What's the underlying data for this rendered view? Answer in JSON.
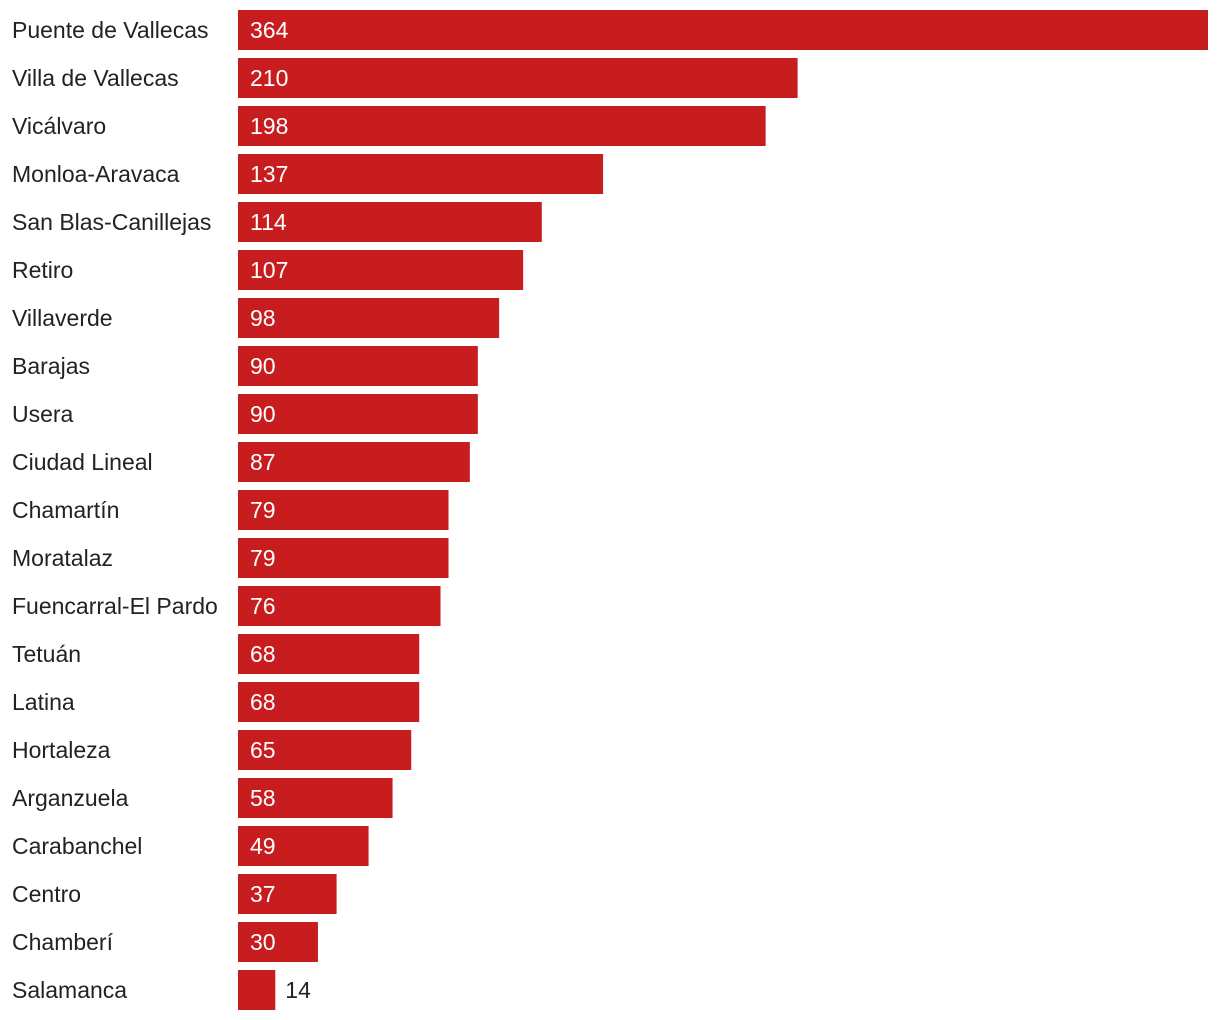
{
  "chart_data": {
    "type": "bar",
    "orientation": "horizontal",
    "title": "",
    "xlabel": "",
    "ylabel": "",
    "grid": false,
    "legend": "none",
    "bar_color": "#c81d1e",
    "label_inside_color": "#ffffff",
    "label_outside_color": "#222222",
    "categories": [
      "Puente de Vallecas",
      "Villa de Vallecas",
      "Vicálvaro",
      "Monloa-Aravaca",
      "San Blas-Canillejas",
      "Retiro",
      "Villaverde",
      "Barajas",
      "Usera",
      "Ciudad Lineal",
      "Chamartín",
      "Moratalaz",
      "Fuencarral-El Pardo",
      "Tetuán",
      "Latina",
      "Hortaleza",
      "Arganzuela",
      "Carabanchel",
      "Centro",
      "Chamberí",
      "Salamanca"
    ],
    "values": [
      364,
      210,
      198,
      137,
      114,
      107,
      98,
      90,
      90,
      87,
      79,
      79,
      76,
      68,
      68,
      65,
      58,
      49,
      37,
      30,
      14
    ],
    "xlim": [
      0,
      364
    ]
  }
}
